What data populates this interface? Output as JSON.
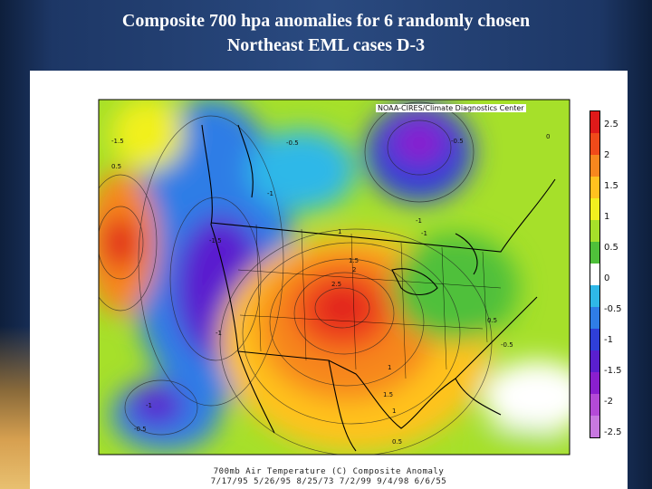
{
  "title": {
    "line1": "Composite 700 hpa anomalies for 6 randomly chosen",
    "line2": "Northeast EML cases D-3"
  },
  "map": {
    "source": "NOAA-CIRES/Climate Diagnostics Center",
    "caption_line1": "700mb Air Temperature (C) Composite Anomaly",
    "caption_line2": "7/17/95 5/26/95 8/25/73 7/2/99 9/4/98 6/6/55",
    "contour_labels": [
      "2.5",
      "2",
      "1.5",
      "1.5",
      "1",
      "1",
      "1",
      "0.5",
      "0.5",
      "-0.5",
      "-0.5",
      "-1",
      "-1",
      "-1",
      "-1.5",
      "-1",
      "-1.5",
      "0.5",
      "-1",
      "-0.5",
      "0",
      "-0.5"
    ]
  },
  "colorbar": {
    "ticks": [
      "2.5",
      "2",
      "1.5",
      "1",
      "0.5",
      "0",
      "-0.5",
      "-1",
      "-1.5",
      "-2",
      "-2.5"
    ],
    "colors": [
      "#e01a1a",
      "#f04a1a",
      "#f7871e",
      "#ffc21f",
      "#f2f01f",
      "#a6e02a",
      "#4fc03a",
      "#ffffff",
      "#2fb8e8",
      "#2f7de6",
      "#2f3fd8",
      "#5a1fcf",
      "#8a1fcf",
      "#b44ad7",
      "#c878e0"
    ]
  },
  "colors": {
    "background": "#1d3766",
    "title_text": "#ffffff"
  }
}
